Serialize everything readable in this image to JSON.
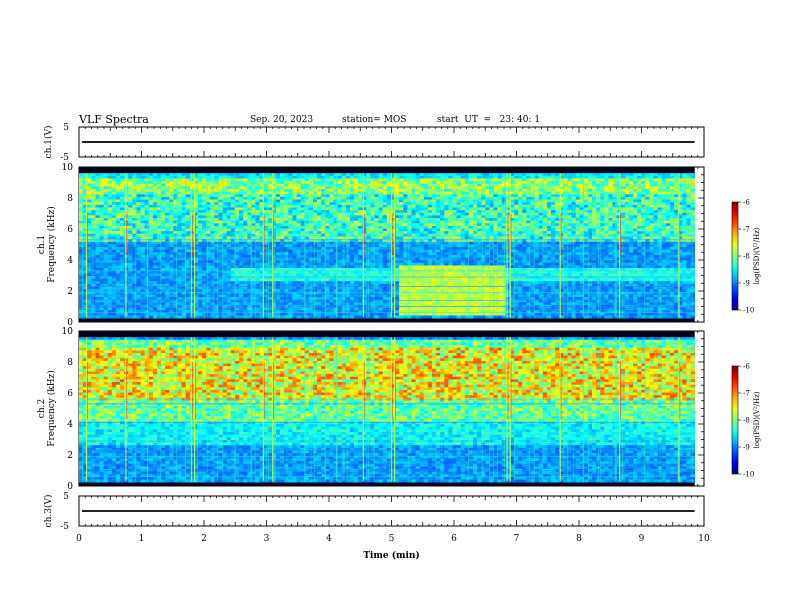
{
  "header": {
    "title": "VLF Spectra",
    "date": "Sep. 20, 2023",
    "station": "station= MOS",
    "start_ut": "start  UT  =   23: 40: 1"
  },
  "chart_data": {
    "type": "heatmap",
    "xlabel": "Time  (min)",
    "xlim": [
      0,
      10
    ],
    "x_ticks": [
      "0",
      "1",
      "2",
      "3",
      "4",
      "5",
      "6",
      "7",
      "8",
      "9",
      "10"
    ],
    "data_end_min": 9.85,
    "panels": [
      {
        "kind": "line",
        "ylabel": "ch.1(V)",
        "ylim": [
          -5,
          5
        ],
        "y_ticks": [
          "5",
          "-5"
        ],
        "value": 0
      },
      {
        "kind": "spectrogram",
        "ylabel_top": "ch.1",
        "ylabel": "Frequency  (kHz)",
        "ylim": [
          0,
          10
        ],
        "y_ticks": [
          "0",
          "2",
          "4",
          "6",
          "8",
          "10"
        ],
        "colorbar": {
          "label": "log(PSD)(V²/Hz)",
          "range": [
            -10,
            -6
          ],
          "ticks": [
            "-6",
            "-7",
            "-8",
            "-9",
            "-10"
          ]
        },
        "event": {
          "t_start_min": 5.1,
          "t_end_min": 6.8,
          "f_low_khz": 0.5,
          "f_high_khz": 3.6
        },
        "cutoff_khz": 9.6,
        "noise_band_khz": [
          5.2,
          9.2
        ]
      },
      {
        "kind": "spectrogram",
        "ylabel_top": "ch.2",
        "ylabel": "Frequency  (kHz)",
        "ylim": [
          0,
          10
        ],
        "y_ticks": [
          "0",
          "2",
          "4",
          "6",
          "8",
          "10"
        ],
        "colorbar": {
          "label": "log(PSD)(V²/Hz)",
          "range": [
            -10,
            -6
          ],
          "ticks": [
            "-6",
            "-7",
            "-8",
            "-9",
            "-10"
          ]
        },
        "intense_band_khz": [
          5.5,
          9.0
        ],
        "cutoff_khz": 9.6
      },
      {
        "kind": "line",
        "ylabel": "ch.3(V)",
        "ylim": [
          -5,
          5
        ],
        "y_ticks": [
          "5",
          "-5"
        ],
        "value": 0
      }
    ]
  }
}
